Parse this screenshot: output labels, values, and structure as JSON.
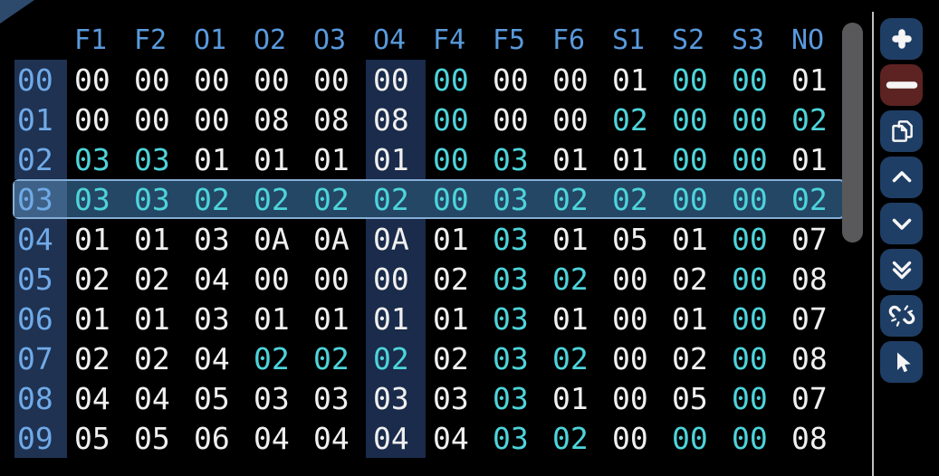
{
  "table": {
    "columns": [
      "F1",
      "F2",
      "O1",
      "O2",
      "O3",
      "O4",
      "F4",
      "F5",
      "F6",
      "S1",
      "S2",
      "S3",
      "NO"
    ],
    "highlighted_column_index": 5,
    "selected_row_label": "03",
    "rows": [
      {
        "label": "00",
        "cells": [
          [
            "00",
            "w"
          ],
          [
            "00",
            "w"
          ],
          [
            "00",
            "w"
          ],
          [
            "00",
            "w"
          ],
          [
            "00",
            "w"
          ],
          [
            "00",
            "w"
          ],
          [
            "00",
            "c"
          ],
          [
            "00",
            "w"
          ],
          [
            "00",
            "w"
          ],
          [
            "01",
            "w"
          ],
          [
            "00",
            "c"
          ],
          [
            "00",
            "c"
          ],
          [
            "01",
            "w"
          ]
        ]
      },
      {
        "label": "01",
        "cells": [
          [
            "00",
            "w"
          ],
          [
            "00",
            "w"
          ],
          [
            "00",
            "w"
          ],
          [
            "08",
            "w"
          ],
          [
            "08",
            "w"
          ],
          [
            "08",
            "w"
          ],
          [
            "00",
            "c"
          ],
          [
            "00",
            "w"
          ],
          [
            "00",
            "w"
          ],
          [
            "02",
            "c"
          ],
          [
            "00",
            "c"
          ],
          [
            "00",
            "c"
          ],
          [
            "02",
            "c"
          ]
        ]
      },
      {
        "label": "02",
        "cells": [
          [
            "03",
            "c"
          ],
          [
            "03",
            "c"
          ],
          [
            "01",
            "w"
          ],
          [
            "01",
            "w"
          ],
          [
            "01",
            "w"
          ],
          [
            "01",
            "w"
          ],
          [
            "00",
            "c"
          ],
          [
            "03",
            "c"
          ],
          [
            "01",
            "w"
          ],
          [
            "01",
            "w"
          ],
          [
            "00",
            "c"
          ],
          [
            "00",
            "c"
          ],
          [
            "01",
            "w"
          ]
        ]
      },
      {
        "label": "03",
        "cells": [
          [
            "03",
            "c"
          ],
          [
            "03",
            "c"
          ],
          [
            "02",
            "c"
          ],
          [
            "02",
            "c"
          ],
          [
            "02",
            "c"
          ],
          [
            "02",
            "c"
          ],
          [
            "00",
            "c"
          ],
          [
            "03",
            "c"
          ],
          [
            "02",
            "c"
          ],
          [
            "02",
            "c"
          ],
          [
            "00",
            "c"
          ],
          [
            "00",
            "c"
          ],
          [
            "02",
            "c"
          ]
        ]
      },
      {
        "label": "04",
        "cells": [
          [
            "01",
            "w"
          ],
          [
            "01",
            "w"
          ],
          [
            "03",
            "w"
          ],
          [
            "0A",
            "w"
          ],
          [
            "0A",
            "w"
          ],
          [
            "0A",
            "w"
          ],
          [
            "01",
            "w"
          ],
          [
            "03",
            "c"
          ],
          [
            "01",
            "w"
          ],
          [
            "05",
            "w"
          ],
          [
            "01",
            "w"
          ],
          [
            "00",
            "c"
          ],
          [
            "07",
            "w"
          ]
        ]
      },
      {
        "label": "05",
        "cells": [
          [
            "02",
            "w"
          ],
          [
            "02",
            "w"
          ],
          [
            "04",
            "w"
          ],
          [
            "00",
            "w"
          ],
          [
            "00",
            "w"
          ],
          [
            "00",
            "w"
          ],
          [
            "02",
            "w"
          ],
          [
            "03",
            "c"
          ],
          [
            "02",
            "c"
          ],
          [
            "00",
            "w"
          ],
          [
            "02",
            "w"
          ],
          [
            "00",
            "c"
          ],
          [
            "08",
            "w"
          ]
        ]
      },
      {
        "label": "06",
        "cells": [
          [
            "01",
            "w"
          ],
          [
            "01",
            "w"
          ],
          [
            "03",
            "w"
          ],
          [
            "01",
            "w"
          ],
          [
            "01",
            "w"
          ],
          [
            "01",
            "w"
          ],
          [
            "01",
            "w"
          ],
          [
            "03",
            "c"
          ],
          [
            "01",
            "w"
          ],
          [
            "00",
            "w"
          ],
          [
            "01",
            "w"
          ],
          [
            "00",
            "c"
          ],
          [
            "07",
            "w"
          ]
        ]
      },
      {
        "label": "07",
        "cells": [
          [
            "02",
            "w"
          ],
          [
            "02",
            "w"
          ],
          [
            "04",
            "w"
          ],
          [
            "02",
            "c"
          ],
          [
            "02",
            "c"
          ],
          [
            "02",
            "c"
          ],
          [
            "02",
            "w"
          ],
          [
            "03",
            "c"
          ],
          [
            "02",
            "c"
          ],
          [
            "00",
            "w"
          ],
          [
            "02",
            "w"
          ],
          [
            "00",
            "c"
          ],
          [
            "08",
            "w"
          ]
        ]
      },
      {
        "label": "08",
        "cells": [
          [
            "04",
            "w"
          ],
          [
            "04",
            "w"
          ],
          [
            "05",
            "w"
          ],
          [
            "03",
            "w"
          ],
          [
            "03",
            "w"
          ],
          [
            "03",
            "w"
          ],
          [
            "03",
            "w"
          ],
          [
            "03",
            "c"
          ],
          [
            "01",
            "w"
          ],
          [
            "00",
            "w"
          ],
          [
            "05",
            "w"
          ],
          [
            "00",
            "c"
          ],
          [
            "07",
            "w"
          ]
        ]
      },
      {
        "label": "09",
        "cells": [
          [
            "05",
            "w"
          ],
          [
            "05",
            "w"
          ],
          [
            "06",
            "w"
          ],
          [
            "04",
            "w"
          ],
          [
            "04",
            "w"
          ],
          [
            "04",
            "w"
          ],
          [
            "04",
            "w"
          ],
          [
            "03",
            "c"
          ],
          [
            "02",
            "c"
          ],
          [
            "00",
            "w"
          ],
          [
            "00",
            "c"
          ],
          [
            "00",
            "c"
          ],
          [
            "08",
            "w"
          ]
        ]
      }
    ]
  },
  "toolbar": {
    "buttons": [
      {
        "name": "add",
        "icon": "plus-icon",
        "style": "primary"
      },
      {
        "name": "remove",
        "icon": "minus-icon",
        "style": "danger"
      },
      {
        "name": "duplicate",
        "icon": "copy-icon",
        "style": "primary"
      },
      {
        "name": "move-up",
        "icon": "chevron-up-icon",
        "style": "primary"
      },
      {
        "name": "move-down",
        "icon": "chevron-down-icon",
        "style": "primary"
      },
      {
        "name": "move-to-bottom",
        "icon": "double-chevron-down-icon",
        "style": "primary"
      },
      {
        "name": "unlink",
        "icon": "broken-link-icon",
        "style": "primary"
      },
      {
        "name": "select-mode",
        "icon": "cursor-icon",
        "style": "primary"
      }
    ]
  },
  "scrollbar": {
    "orientation": "vertical"
  },
  "colors": {
    "background": "#000000",
    "header_text": "#599add",
    "row_label_text": "#70aae8",
    "cell_text": "#f0f0f0",
    "cell_text_alt": "#4dd4da",
    "label_band_bg": "#1f3252",
    "o4_band_bg": "#1a2b4b",
    "selected_row_bg": "#244766",
    "selected_row_border": "#85aed6",
    "selected_label_bg": "#3e6287",
    "button_bg": "#1f3e65",
    "button_danger_bg": "#5c2322",
    "icon_color": "#f5f5f5",
    "scrollbar_thumb": "#59595b",
    "divider": "#c0c0c0",
    "corner_fold": "#2d4a6c"
  }
}
